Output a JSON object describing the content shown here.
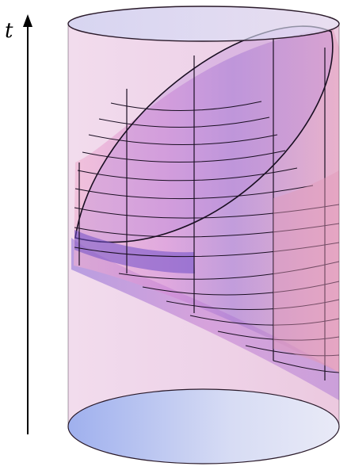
{
  "axis": {
    "label": "t"
  },
  "colors": {
    "cylinder_fill": "#e7c3df",
    "cylinder_edge": "#2a1a2a",
    "cap_blue": "#b7c6f2",
    "sheet_pink": "#e8a9d6",
    "sheet_violet": "#8a63cc",
    "grid_line": "#1a0f22",
    "arrow": "#000000"
  },
  "icons": {
    "axis_arrow": "up-arrow-icon"
  }
}
